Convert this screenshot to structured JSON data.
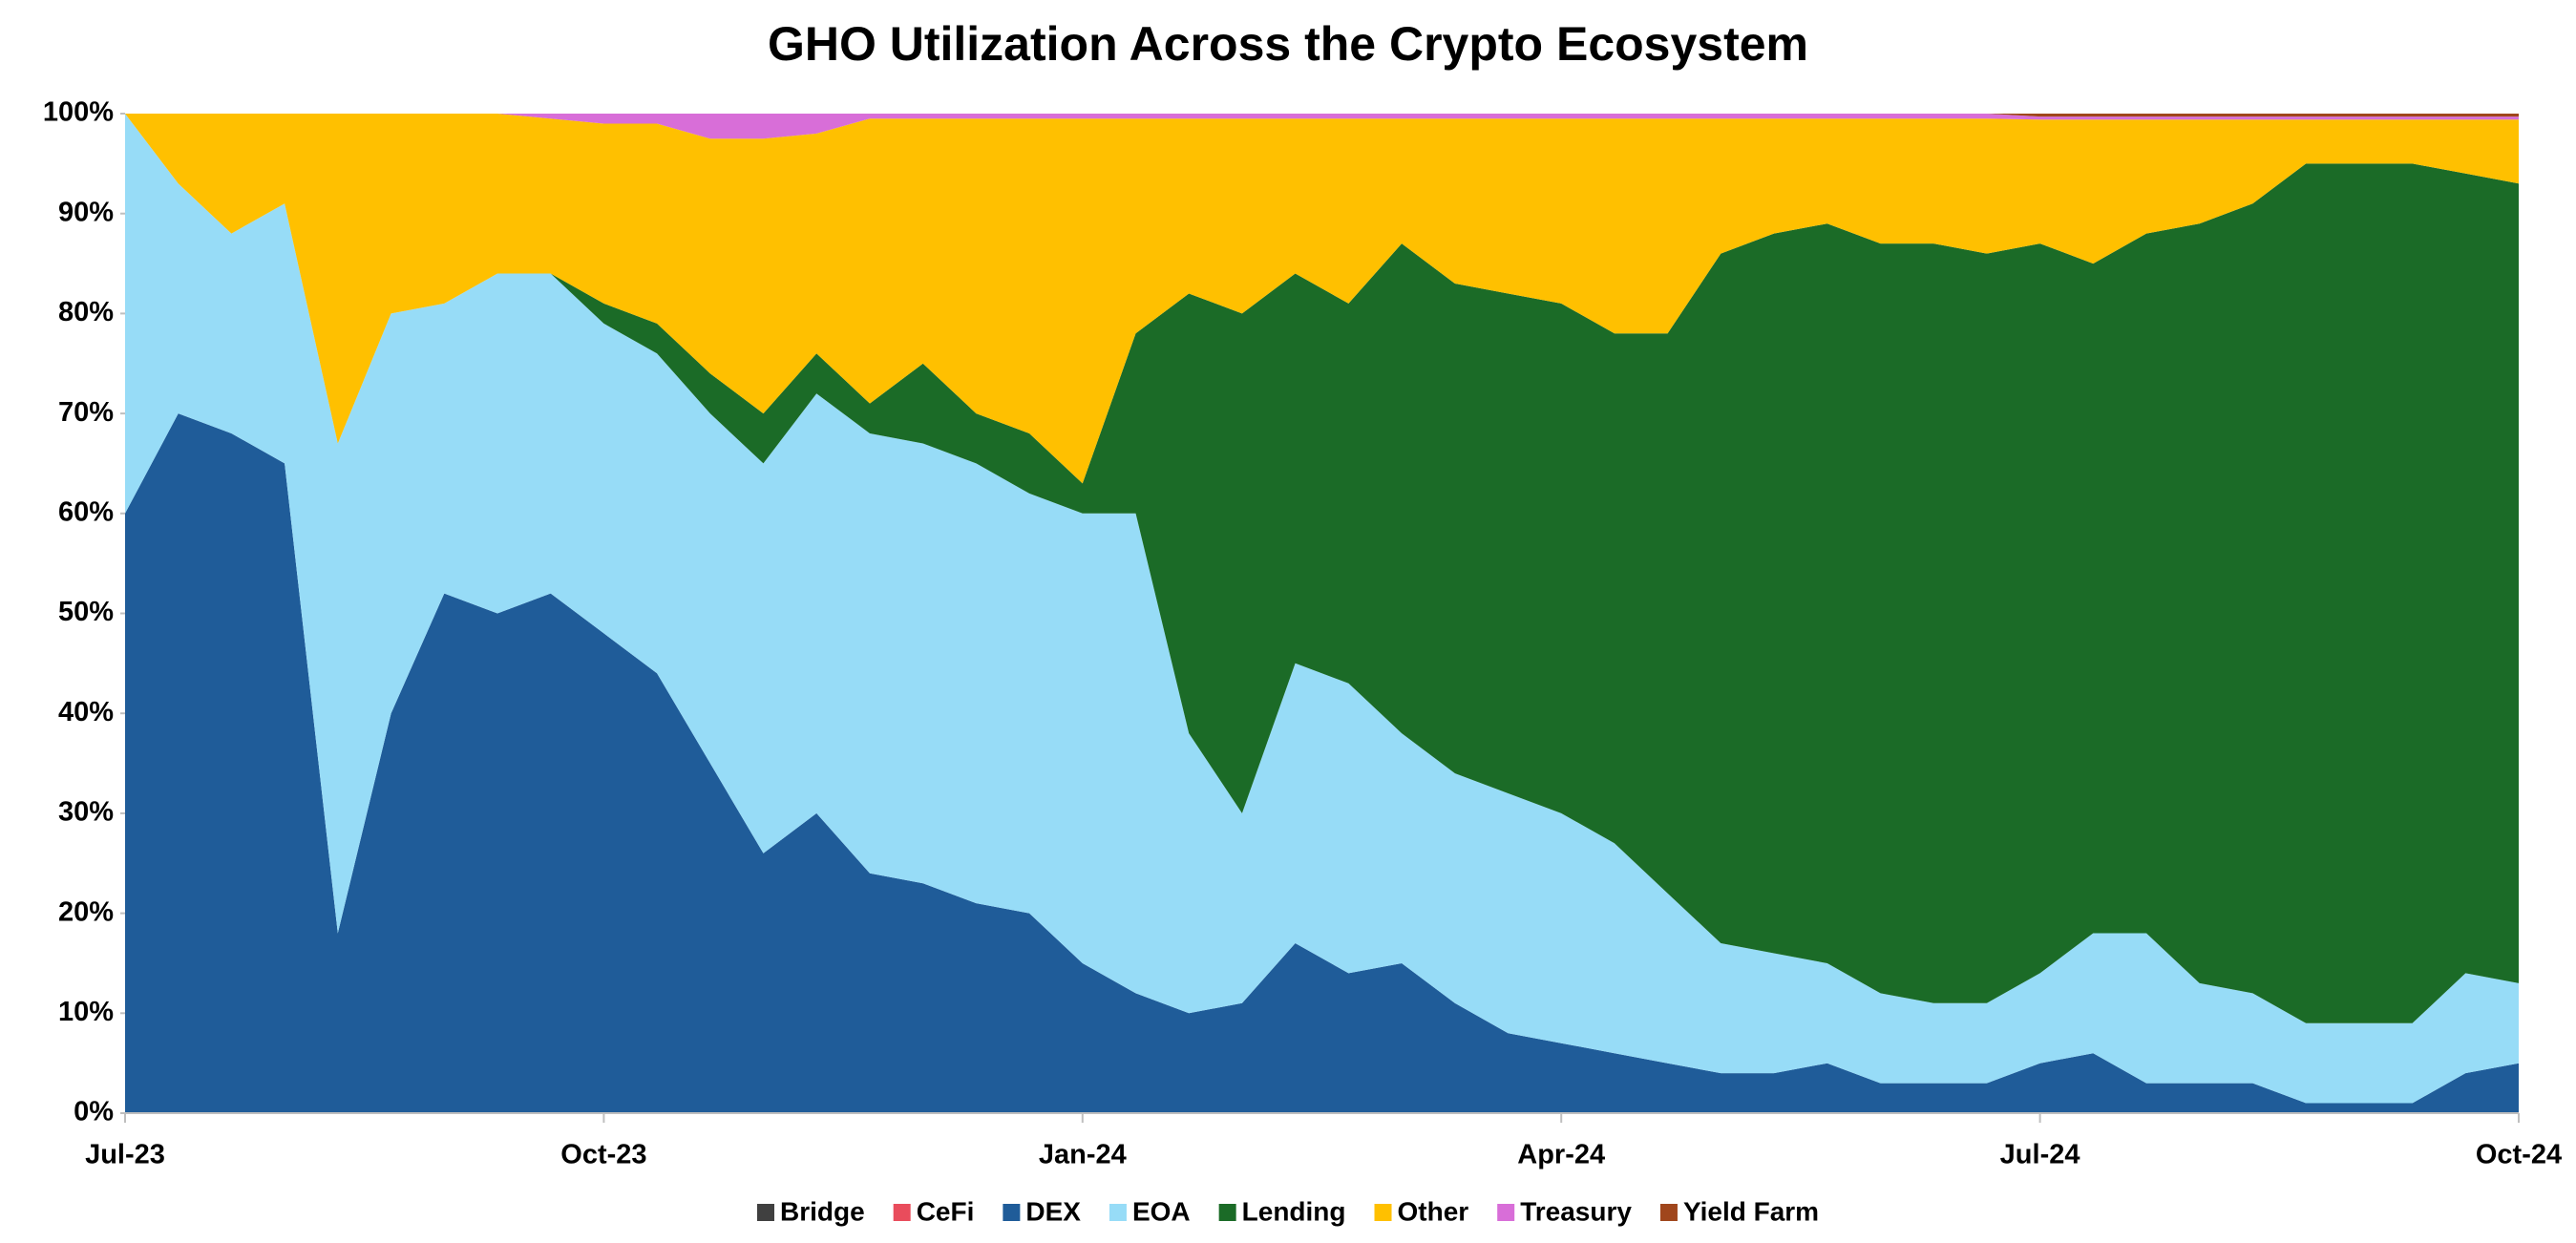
{
  "chart_data": {
    "type": "stacked_area",
    "title": "GHO Utilization Across the Crypto Ecosystem",
    "categories": [
      "Jul-23",
      null,
      null,
      null,
      null,
      null,
      null,
      null,
      null,
      "Oct-23",
      null,
      null,
      null,
      null,
      null,
      null,
      null,
      null,
      "Jan-24",
      null,
      null,
      null,
      null,
      null,
      null,
      null,
      null,
      "Apr-24",
      null,
      null,
      null,
      null,
      null,
      null,
      null,
      null,
      "Jul-24",
      null,
      null,
      null,
      null,
      null,
      null,
      null,
      null,
      "Oct-24"
    ],
    "ylim": [
      0,
      100
    ],
    "yticks": [
      {
        "value": 0,
        "label": "0%"
      },
      {
        "value": 10,
        "label": "10%"
      },
      {
        "value": 20,
        "label": "20%"
      },
      {
        "value": 30,
        "label": "30%"
      },
      {
        "value": 40,
        "label": "40%"
      },
      {
        "value": 50,
        "label": "50%"
      },
      {
        "value": 60,
        "label": "60%"
      },
      {
        "value": 70,
        "label": "70%"
      },
      {
        "value": 80,
        "label": "80%"
      },
      {
        "value": 90,
        "label": "90%"
      },
      {
        "value": 100,
        "label": "100%"
      }
    ],
    "legend": "bottom",
    "series": [
      {
        "name": "Bridge",
        "color": "#404040",
        "values": [
          0,
          0,
          0,
          0,
          0,
          0,
          0,
          0,
          0,
          0,
          0,
          0,
          0,
          0,
          0,
          0,
          0,
          0,
          0,
          0,
          0,
          0,
          0,
          0,
          0,
          0,
          0,
          0,
          0,
          0,
          0,
          0,
          0,
          0,
          0,
          0,
          0,
          0,
          0,
          0,
          0,
          0,
          0,
          0,
          0,
          0
        ]
      },
      {
        "name": "CeFi",
        "color": "#e94c5c",
        "values": [
          0,
          0,
          0,
          0,
          0,
          0,
          0,
          0,
          0,
          0,
          0,
          0,
          0,
          0,
          0,
          0,
          0,
          0,
          0,
          0,
          0,
          0,
          0,
          0,
          0,
          0,
          0,
          0,
          0,
          0,
          0,
          0,
          0,
          0,
          0,
          0,
          0,
          0,
          0,
          0,
          0,
          0,
          0,
          0,
          0,
          0
        ]
      },
      {
        "name": "DEX",
        "color": "#1f5c99",
        "values": [
          60,
          70,
          68,
          65,
          18,
          40,
          52,
          50,
          52,
          48,
          44,
          35,
          26,
          30,
          24,
          23,
          21,
          20,
          15,
          12,
          10,
          11,
          17,
          14,
          15,
          11,
          8,
          7,
          6,
          5,
          4,
          4,
          5,
          3,
          3,
          3,
          5,
          6,
          3,
          3,
          3,
          1,
          1,
          1,
          4,
          5
        ]
      },
      {
        "name": "EOA",
        "color": "#97dcf7",
        "values": [
          40,
          23,
          20,
          26,
          49,
          40,
          29,
          34,
          32,
          31,
          32,
          35,
          39,
          42,
          44,
          44,
          44,
          42,
          45,
          48,
          28,
          19,
          28,
          29,
          23,
          23,
          24,
          23,
          21,
          17,
          13,
          12,
          10,
          9,
          8,
          8,
          9,
          12,
          15,
          10,
          9,
          8,
          8,
          8,
          10,
          8
        ]
      },
      {
        "name": "Lending",
        "color": "#1b6b27",
        "values": [
          0,
          0,
          0,
          0,
          0,
          0,
          0,
          0,
          0,
          2,
          3,
          4,
          5,
          4,
          3,
          8,
          5,
          6,
          3,
          18,
          44,
          50,
          39,
          38,
          49,
          49,
          50,
          51,
          51,
          56,
          69,
          72,
          74,
          75,
          76,
          75,
          73,
          67,
          70,
          76,
          79,
          86,
          86,
          86,
          80,
          80
        ]
      },
      {
        "name": "Other",
        "color": "#ffc000",
        "values": [
          0,
          7,
          12,
          9,
          33,
          20,
          19,
          16,
          15.5,
          18,
          20,
          23.5,
          27.5,
          22,
          28.5,
          24.5,
          29.5,
          31.5,
          36.5,
          21.5,
          17.5,
          19.5,
          15.5,
          18.5,
          12.5,
          16.5,
          17.5,
          18.5,
          21.5,
          21.5,
          13.5,
          11.5,
          10.5,
          12.5,
          12.5,
          13.5,
          12.4,
          14.4,
          11.4,
          10.4,
          8.4,
          4.4,
          4.4,
          4.4,
          5.4,
          6.4
        ]
      },
      {
        "name": "Treasury",
        "color": "#d86ed8",
        "values": [
          0,
          0,
          0,
          0,
          0,
          0,
          0,
          0,
          0.5,
          1,
          1,
          2.5,
          2.5,
          2,
          0.5,
          0.5,
          0.5,
          0.5,
          0.5,
          0.5,
          0.5,
          0.5,
          0.5,
          0.5,
          0.5,
          0.5,
          0.5,
          0.5,
          0.5,
          0.5,
          0.5,
          0.5,
          0.5,
          0.5,
          0.5,
          0.5,
          0.3,
          0.3,
          0.3,
          0.3,
          0.3,
          0.3,
          0.3,
          0.3,
          0.3,
          0.3
        ]
      },
      {
        "name": "Yield Farm",
        "color": "#a0461c",
        "values": [
          0,
          0,
          0,
          0,
          0,
          0,
          0,
          0,
          0,
          0,
          0,
          0,
          0,
          0,
          0,
          0,
          0,
          0,
          0,
          0,
          0,
          0,
          0,
          0,
          0,
          0,
          0,
          0,
          0,
          0,
          0,
          0,
          0,
          0,
          0,
          0,
          0.3,
          0.3,
          0.3,
          0.3,
          0.3,
          0.3,
          0.3,
          0.3,
          0.3,
          0.3
        ]
      }
    ]
  }
}
